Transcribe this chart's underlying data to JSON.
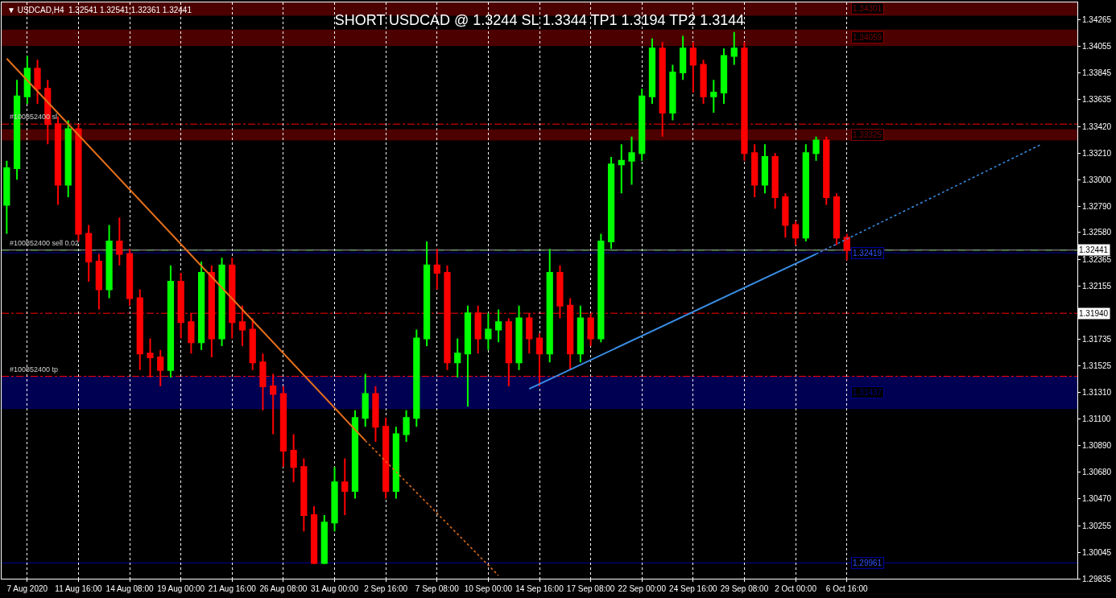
{
  "chart_data": {
    "type": "candlestick",
    "title": "SHORT USDCAD @ 1.3244 SL 1.3344 TP1 1.3194 TP2 1.3144",
    "categories": [
      null,
      null,
      "7 Aug 2020",
      null,
      null,
      null,
      null,
      "11 Aug 16:00",
      null,
      null,
      null,
      null,
      "14 Aug 08:00",
      null,
      null,
      null,
      null,
      "19 Aug 00:00",
      null,
      null,
      null,
      null,
      "21 Aug 16:00",
      null,
      null,
      null,
      null,
      "26 Aug 08:00",
      null,
      null,
      null,
      null,
      "31 Aug 00:00",
      null,
      null,
      null,
      null,
      "2 Sep 16:00",
      null,
      null,
      null,
      null,
      "7 Sep 08:00",
      null,
      null,
      null,
      null,
      "10 Sep 00:00",
      null,
      null,
      null,
      null,
      "14 Sep 16:00",
      null,
      null,
      null,
      null,
      "17 Sep 08:00",
      null,
      null,
      null,
      null,
      "22 Sep 00:00",
      null,
      null,
      null,
      null,
      "24 Sep 16:00",
      null,
      null,
      null,
      null,
      "29 Sep 08:00",
      null,
      null,
      null,
      null,
      "2 Oct 00:00",
      null,
      null,
      null,
      null,
      "6 Oct 16:00",
      null,
      null,
      null,
      null,
      null,
      null,
      null,
      null,
      null,
      null,
      null,
      null,
      null,
      null,
      null,
      null,
      null,
      null,
      null,
      null,
      null,
      null
    ],
    "ohlc": [
      [
        1.328,
        1.3315,
        1.3257,
        1.3309
      ],
      [
        1.3309,
        1.3379,
        1.33,
        1.3366
      ],
      [
        1.3366,
        1.3398,
        1.336,
        1.3388
      ],
      [
        1.3388,
        1.3395,
        1.336,
        1.3372
      ],
      [
        1.3372,
        1.3379,
        1.3328,
        1.3344
      ],
      [
        1.3344,
        1.335,
        1.328,
        1.3296
      ],
      [
        1.3296,
        1.3347,
        1.3286,
        1.334
      ],
      [
        1.334,
        1.3344,
        1.3251,
        1.3257
      ],
      [
        1.3257,
        1.3264,
        1.3219,
        1.3235
      ],
      [
        1.3235,
        1.3241,
        1.3197,
        1.3213
      ],
      [
        1.3213,
        1.3264,
        1.3206,
        1.3251
      ],
      [
        1.3251,
        1.327,
        1.3232,
        1.3241
      ],
      [
        1.3241,
        1.3245,
        1.32,
        1.3206
      ],
      [
        1.3206,
        1.3213,
        1.3149,
        1.3162
      ],
      [
        1.3162,
        1.3174,
        1.3143,
        1.3159
      ],
      [
        1.3159,
        1.3165,
        1.3136,
        1.3149
      ],
      [
        1.3149,
        1.3232,
        1.3143,
        1.3219
      ],
      [
        1.3219,
        1.3226,
        1.3174,
        1.3187
      ],
      [
        1.3187,
        1.3194,
        1.3162,
        1.3171
      ],
      [
        1.3171,
        1.3235,
        1.3165,
        1.3226
      ],
      [
        1.3226,
        1.3232,
        1.3159,
        1.3174
      ],
      [
        1.3174,
        1.3238,
        1.3168,
        1.3232
      ],
      [
        1.3232,
        1.3238,
        1.3174,
        1.3187
      ],
      [
        1.3187,
        1.32,
        1.3168,
        1.3181
      ],
      [
        1.3181,
        1.319,
        1.3149,
        1.3155
      ],
      [
        1.3155,
        1.3162,
        1.3117,
        1.3136
      ],
      [
        1.3136,
        1.3146,
        1.3098,
        1.313
      ],
      [
        1.313,
        1.3136,
        1.3072,
        1.3085
      ],
      [
        1.3085,
        1.3098,
        1.306,
        1.3072
      ],
      [
        1.3072,
        1.3079,
        1.3021,
        1.3034
      ],
      [
        1.3034,
        1.3041,
        1.2995,
        1.2996
      ],
      [
        1.2996,
        1.3034,
        1.2995,
        1.3028
      ],
      [
        1.3028,
        1.3072,
        1.3021,
        1.306
      ],
      [
        1.306,
        1.3079,
        1.3034,
        1.3053
      ],
      [
        1.3053,
        1.3117,
        1.3047,
        1.3111
      ],
      [
        1.3111,
        1.3146,
        1.3104,
        1.313
      ],
      [
        1.313,
        1.3136,
        1.3092,
        1.3104
      ],
      [
        1.3104,
        1.3111,
        1.3047,
        1.3053
      ],
      [
        1.3053,
        1.3104,
        1.3047,
        1.3098
      ],
      [
        1.3098,
        1.3117,
        1.3092,
        1.3111
      ],
      [
        1.3111,
        1.3181,
        1.3104,
        1.3174
      ],
      [
        1.3174,
        1.3251,
        1.3168,
        1.3232
      ],
      [
        1.3232,
        1.3245,
        1.3213,
        1.3226
      ],
      [
        1.3226,
        1.3232,
        1.3149,
        1.3155
      ],
      [
        1.3155,
        1.3174,
        1.3143,
        1.3162
      ],
      [
        1.3162,
        1.32,
        1.312,
        1.3194
      ],
      [
        1.3194,
        1.32,
        1.3162,
        1.3174
      ],
      [
        1.3174,
        1.3194,
        1.3165,
        1.3181
      ],
      [
        1.3181,
        1.3197,
        1.3171,
        1.3187
      ],
      [
        1.3187,
        1.319,
        1.3136,
        1.3155
      ],
      [
        1.3155,
        1.32,
        1.3149,
        1.319
      ],
      [
        1.319,
        1.3194,
        1.3162,
        1.3174
      ],
      [
        1.3174,
        1.3178,
        1.3136,
        1.3162
      ],
      [
        1.3162,
        1.3245,
        1.3155,
        1.3226
      ],
      [
        1.3226,
        1.3232,
        1.319,
        1.32
      ],
      [
        1.32,
        1.3206,
        1.3149,
        1.3162
      ],
      [
        1.3162,
        1.32,
        1.3155,
        1.319
      ],
      [
        1.319,
        1.3194,
        1.3168,
        1.3174
      ],
      [
        1.3174,
        1.3257,
        1.3171,
        1.3251
      ],
      [
        1.3251,
        1.3318,
        1.3245,
        1.3312
      ],
      [
        1.3312,
        1.3328,
        1.3289,
        1.3315
      ],
      [
        1.3315,
        1.3334,
        1.3296,
        1.3321
      ],
      [
        1.3321,
        1.3372,
        1.3315,
        1.3366
      ],
      [
        1.3366,
        1.3412,
        1.336,
        1.3404
      ],
      [
        1.3404,
        1.3409,
        1.3334,
        1.3353
      ],
      [
        1.3353,
        1.3391,
        1.3347,
        1.3385
      ],
      [
        1.3385,
        1.3414,
        1.3379,
        1.3404
      ],
      [
        1.3404,
        1.3409,
        1.3369,
        1.3391
      ],
      [
        1.3391,
        1.3395,
        1.336,
        1.3366
      ],
      [
        1.3366,
        1.3379,
        1.3353,
        1.3369
      ],
      [
        1.3369,
        1.3404,
        1.336,
        1.3398
      ],
      [
        1.3398,
        1.3417,
        1.3391,
        1.3404
      ],
      [
        1.3404,
        1.3409,
        1.3315,
        1.3321
      ],
      [
        1.3321,
        1.3328,
        1.3286,
        1.3296
      ],
      [
        1.3296,
        1.3328,
        1.3289,
        1.3318
      ],
      [
        1.3318,
        1.3321,
        1.3277,
        1.3286
      ],
      [
        1.3286,
        1.3289,
        1.3254,
        1.3264
      ],
      [
        1.3264,
        1.3267,
        1.3248,
        1.3254
      ],
      [
        1.3254,
        1.3328,
        1.3251,
        1.3321
      ],
      [
        1.3321,
        1.3334,
        1.3315,
        1.3331
      ],
      [
        1.3331,
        1.3334,
        1.328,
        1.3286
      ],
      [
        1.3286,
        1.3289,
        1.3248,
        1.3254
      ],
      [
        1.3254,
        1.3257,
        1.3236,
        1.3244
      ],
      null,
      null,
      null,
      null,
      null,
      null,
      null,
      null,
      null,
      null,
      null,
      null,
      null,
      null,
      null,
      null,
      null,
      null,
      null,
      null,
      null,
      null
    ],
    "colors": [
      "#00ff00",
      "#00ff00",
      "#00ff00",
      "#ff0000",
      "#ff0000",
      "#ff0000",
      "#00ff00",
      "#ff0000",
      "#ff0000",
      "#ff0000",
      "#00ff00",
      "#ff0000",
      "#ff0000",
      "#ff0000",
      "#ff0000",
      "#ff0000",
      "#00ff00",
      "#ff0000",
      "#ff0000",
      "#00ff00",
      "#ff0000",
      "#00ff00",
      "#ff0000",
      "#ff0000",
      "#ff0000",
      "#ff0000",
      "#ff0000",
      "#ff0000",
      "#ff0000",
      "#ff0000",
      "#ff0000",
      "#00ff00",
      "#00ff00",
      "#ff0000",
      "#00ff00",
      "#00ff00",
      "#ff0000",
      "#ff0000",
      "#00ff00",
      "#00ff00",
      "#00ff00",
      "#00ff00",
      "#ff0000",
      "#ff0000",
      "#00ff00",
      "#00ff00",
      "#ff0000",
      "#00ff00",
      "#00ff00",
      "#ff0000",
      "#00ff00",
      "#ff0000",
      "#ff0000",
      "#00ff00",
      "#ff0000",
      "#ff0000",
      "#00ff00",
      "#ff0000",
      "#00ff00",
      "#00ff00",
      "#00ff00",
      "#00ff00",
      "#00ff00",
      "#00ff00",
      "#ff0000",
      "#00ff00",
      "#00ff00",
      "#ff0000",
      "#ff0000",
      "#00ff00",
      "#00ff00",
      "#00ff00",
      "#ff0000",
      "#ff0000",
      "#00ff00",
      "#ff0000",
      "#ff0000",
      "#ff0000",
      "#00ff00",
      "#00ff00",
      "#ff0000",
      "#ff0000",
      "#ff0000",
      null,
      null,
      null,
      null,
      null,
      null,
      null,
      null,
      null,
      null,
      null,
      null,
      null,
      null,
      null,
      null,
      null,
      null,
      null,
      null,
      null,
      null
    ],
    "series": [
      {
        "type": "line",
        "color": "#e8701a",
        "line_style": "solid",
        "values": [
          1.3396,
          null,
          null,
          null,
          null,
          null,
          null,
          null,
          null,
          null,
          null,
          null,
          null,
          null,
          null,
          null,
          null,
          null,
          null,
          null,
          null,
          null,
          null,
          null,
          null,
          null,
          null,
          null,
          null,
          null,
          null,
          null,
          null,
          null,
          null,
          1.3093,
          null,
          null,
          null,
          null,
          null,
          null,
          null,
          null,
          null,
          null,
          null,
          null,
          null,
          null,
          null,
          null,
          null,
          null,
          null,
          null,
          null,
          null,
          null,
          null,
          null,
          null,
          null,
          null,
          null,
          null,
          null,
          null,
          null,
          null,
          null,
          null,
          null,
          null,
          null,
          null,
          null,
          null,
          null,
          null,
          null,
          null,
          null,
          null,
          null,
          null,
          null,
          null,
          null,
          null,
          null,
          null,
          null,
          null,
          null,
          null,
          null,
          null,
          null,
          null,
          null,
          null,
          null,
          null,
          null
        ]
      },
      {
        "type": "line",
        "color": "#e8701a",
        "line_style": "dotted",
        "values": [
          null,
          null,
          null,
          null,
          null,
          null,
          null,
          null,
          null,
          null,
          null,
          null,
          null,
          null,
          null,
          null,
          null,
          null,
          null,
          null,
          null,
          null,
          null,
          null,
          null,
          null,
          null,
          null,
          null,
          null,
          null,
          null,
          null,
          null,
          null,
          1.3093,
          null,
          null,
          null,
          null,
          null,
          null,
          null,
          null,
          null,
          null,
          null,
          null,
          1.2986,
          null,
          null,
          null,
          null,
          null,
          null,
          null,
          null,
          null,
          null,
          null,
          null,
          null,
          null,
          null,
          null,
          null,
          null,
          null,
          null,
          null,
          null,
          null,
          null,
          null,
          null,
          null,
          null,
          null,
          null,
          null,
          null,
          null,
          null,
          null,
          null,
          null,
          null,
          null,
          null,
          null,
          null,
          null,
          null,
          null,
          null,
          null,
          null,
          null,
          null,
          null,
          null,
          null,
          null,
          null,
          null
        ]
      },
      {
        "type": "line",
        "color": "#3a8ee6",
        "line_style": "solid",
        "values": [
          null,
          null,
          null,
          null,
          null,
          null,
          null,
          null,
          null,
          null,
          null,
          null,
          null,
          null,
          null,
          null,
          null,
          null,
          null,
          null,
          null,
          null,
          null,
          null,
          null,
          null,
          null,
          null,
          null,
          null,
          null,
          null,
          null,
          null,
          null,
          null,
          null,
          null,
          null,
          null,
          null,
          null,
          null,
          null,
          null,
          null,
          null,
          null,
          null,
          null,
          null,
          1.3134,
          null,
          null,
          null,
          null,
          null,
          null,
          null,
          null,
          null,
          null,
          null,
          null,
          null,
          null,
          null,
          null,
          null,
          null,
          null,
          null,
          null,
          null,
          null,
          null,
          null,
          null,
          null,
          1.3241,
          null,
          null,
          null,
          null,
          null,
          null,
          null,
          null,
          null,
          null,
          null,
          null,
          null,
          null,
          null,
          null,
          null,
          null,
          null,
          null,
          null,
          null,
          null,
          null,
          null
        ]
      },
      {
        "type": "line",
        "color": "#3a8ee6",
        "line_style": "dotted",
        "values": [
          null,
          null,
          null,
          null,
          null,
          null,
          null,
          null,
          null,
          null,
          null,
          null,
          null,
          null,
          null,
          null,
          null,
          null,
          null,
          null,
          null,
          null,
          null,
          null,
          null,
          null,
          null,
          null,
          null,
          null,
          null,
          null,
          null,
          null,
          null,
          null,
          null,
          null,
          null,
          null,
          null,
          null,
          null,
          null,
          null,
          null,
          null,
          null,
          null,
          null,
          null,
          null,
          null,
          null,
          null,
          null,
          null,
          null,
          null,
          null,
          null,
          null,
          null,
          null,
          null,
          null,
          null,
          null,
          null,
          null,
          null,
          null,
          null,
          null,
          null,
          null,
          null,
          null,
          null,
          1.3241,
          null,
          null,
          null,
          null,
          null,
          null,
          null,
          null,
          null,
          null,
          null,
          null,
          null,
          null,
          null,
          null,
          null,
          null,
          null,
          null,
          null,
          1.3328,
          null,
          null,
          null
        ]
      }
    ],
    "ylim": [
      1.29835,
      1.34405
    ],
    "yticks": [
      {
        "value": 1.34265,
        "label": "1.34265"
      },
      {
        "value": 1.34055,
        "label": "1.34055"
      },
      {
        "value": 1.33845,
        "label": "1.33845"
      },
      {
        "value": 1.33635,
        "label": "1.33635"
      },
      {
        "value": 1.3342,
        "label": "1.33420"
      },
      {
        "value": 1.3321,
        "label": "1.33210"
      },
      {
        "value": 1.33,
        "label": "1.33000"
      },
      {
        "value": 1.3279,
        "label": "1.32790"
      },
      {
        "value": 1.3258,
        "label": "1.32580"
      },
      {
        "value": 1.32365,
        "label": "1.32365"
      },
      {
        "value": 1.32155,
        "label": "1.32155"
      },
      {
        "value": 1.31735,
        "label": "1.31735"
      },
      {
        "value": 1.31525,
        "label": "1.31525"
      },
      {
        "value": 1.3131,
        "label": "1.31310"
      },
      {
        "value": 1.311,
        "label": "1.31100"
      },
      {
        "value": 1.3089,
        "label": "1.30890"
      },
      {
        "value": 1.3068,
        "label": "1.30680"
      },
      {
        "value": 1.3047,
        "label": "1.30470"
      },
      {
        "value": 1.30255,
        "label": "1.30255"
      },
      {
        "value": 1.30045,
        "label": "1.30045"
      },
      {
        "value": 1.29835,
        "label": "1.29835"
      }
    ],
    "ref_lines": [
      {
        "axis": "y",
        "value": 1.3344,
        "label": "#100852400 sl",
        "color": "#ff0000",
        "line_style": "dashdot"
      },
      {
        "axis": "y",
        "value": 1.3244,
        "label": "#100852400 sell 0.02",
        "color": "#00c000",
        "line_style": "dashed"
      },
      {
        "axis": "y",
        "value": 1.3194,
        "color": "#ff0000",
        "line_style": "dashdot"
      },
      {
        "axis": "y",
        "value": 1.3144,
        "label": "#100852400 tp",
        "color": "#ff0000",
        "line_style": "dashdot"
      },
      {
        "axis": "y",
        "value": 1.32441,
        "color": "#a0a0a0",
        "line_style": "solid"
      },
      {
        "axis": "y",
        "value": 1.32419,
        "label": "1.32419",
        "color": "#0000a0",
        "line_style": "solid"
      },
      {
        "axis": "y",
        "value": 1.29961,
        "label": "1.29961",
        "color": "#0000a0",
        "line_style": "solid"
      }
    ],
    "bands": [
      {
        "axis": "y",
        "from": 1.343,
        "to": 1.3441,
        "label": "1.34301",
        "color": "#800000"
      },
      {
        "axis": "y",
        "from": 1.3406,
        "to": 1.3419,
        "label": "1.34059",
        "color": "#800000"
      },
      {
        "axis": "y",
        "from": 1.3331,
        "to": 1.334,
        "label": "1.33325",
        "color": "#800000"
      },
      {
        "axis": "y",
        "from": 1.3118,
        "to": 1.3144,
        "label": "1.31437",
        "color": "#00008b"
      }
    ],
    "annotations": [
      "▼ USDCAD,H4  1.32541 1.32541 1.32361 1.32441",
      {
        "text": "1.32441",
        "y": 1.32441
      },
      {
        "text": "1.31940",
        "y": 1.3194
      }
    ],
    "grid": "x",
    "legend": false
  }
}
